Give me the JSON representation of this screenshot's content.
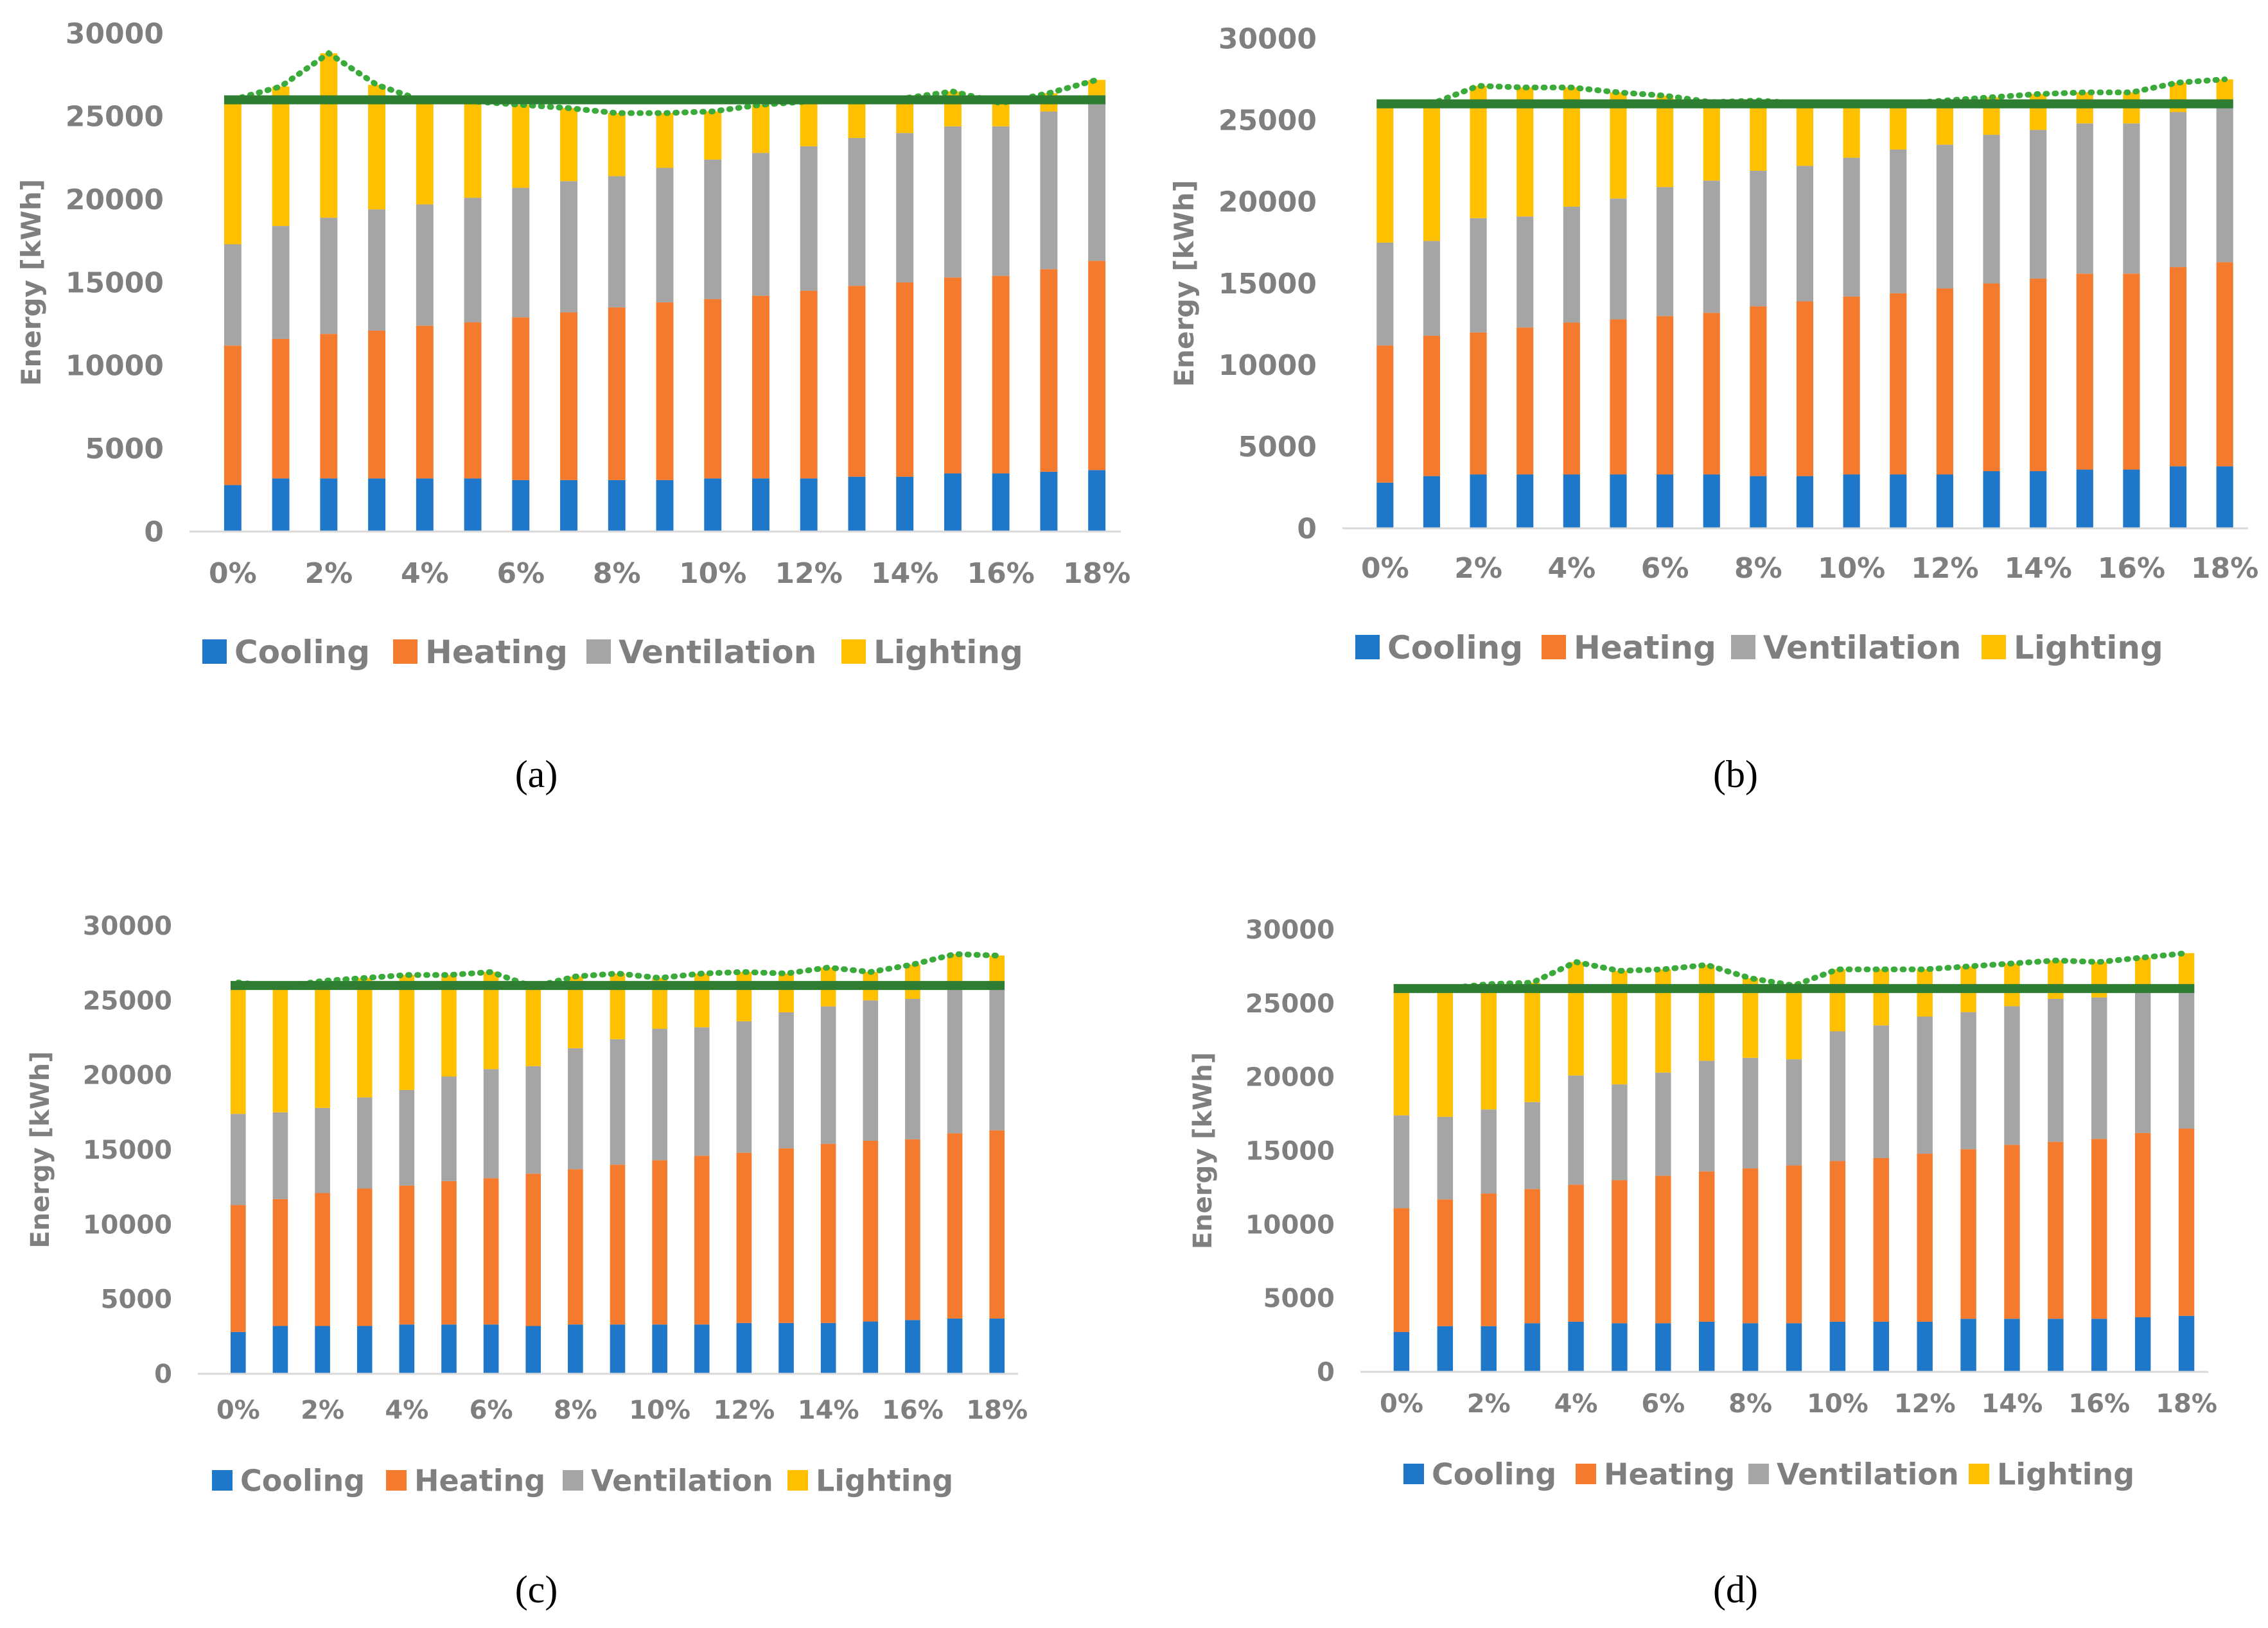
{
  "figure": {
    "colors": {
      "Cooling": "#1f77c9",
      "Heating": "#f47a2e",
      "Ventilation": "#a5a5a5",
      "Lighting": "#ffc000",
      "reference_line": "#2e7d32",
      "total_line": "#3aaa3a"
    }
  },
  "chart_data": [
    {
      "type": "bar",
      "stacked": true,
      "panel_label": "(a)",
      "ylabel": "Energy [kWh]",
      "ylim": [
        0,
        30000
      ],
      "yticks": [
        "0",
        "5000",
        "10000",
        "15000",
        "20000",
        "25000",
        "30000"
      ],
      "categories": [
        "0%",
        "1%",
        "2%",
        "3%",
        "4%",
        "5%",
        "6%",
        "7%",
        "8%",
        "9%",
        "10%",
        "11%",
        "12%",
        "13%",
        "14%",
        "15%",
        "16%",
        "17%",
        "18%"
      ],
      "xtick_labels": [
        "0%",
        "2%",
        "4%",
        "6%",
        "8%",
        "10%",
        "12%",
        "14%",
        "16%",
        "18%"
      ],
      "series": [
        {
          "name": "Cooling",
          "values": [
            2800,
            3200,
            3200,
            3200,
            3200,
            3200,
            3100,
            3100,
            3100,
            3100,
            3200,
            3200,
            3200,
            3300,
            3300,
            3500,
            3500,
            3600,
            3700
          ]
        },
        {
          "name": "Heating",
          "values": [
            8400,
            8400,
            8700,
            8900,
            9200,
            9400,
            9800,
            10100,
            10400,
            10700,
            10800,
            11000,
            11300,
            11500,
            11700,
            11800,
            11900,
            12200,
            12600
          ]
        },
        {
          "name": "Ventilation",
          "values": [
            6100,
            6800,
            7000,
            7300,
            7300,
            7500,
            7800,
            7900,
            7900,
            8100,
            8400,
            8600,
            8700,
            8900,
            9000,
            9100,
            9000,
            9500,
            9700
          ]
        },
        {
          "name": "Lighting",
          "values": [
            8700,
            8400,
            9900,
            7500,
            6200,
            5800,
            5000,
            4400,
            3800,
            3300,
            2900,
            2900,
            2700,
            2200,
            2100,
            2100,
            1400,
            1100,
            1200
          ]
        }
      ],
      "reference_value": 26000,
      "legend": [
        "Cooling",
        "Heating",
        "Ventilation",
        "Lighting"
      ]
    },
    {
      "type": "bar",
      "stacked": true,
      "panel_label": "(b)",
      "ylabel": "Energy [kWh]",
      "ylim": [
        0,
        30000
      ],
      "yticks": [
        "0",
        "5000",
        "10000",
        "15000",
        "20000",
        "25000",
        "30000"
      ],
      "categories": [
        "0%",
        "1%",
        "2%",
        "3%",
        "4%",
        "5%",
        "6%",
        "7%",
        "8%",
        "9%",
        "10%",
        "11%",
        "12%",
        "13%",
        "14%",
        "15%",
        "16%",
        "17%",
        "18%"
      ],
      "xtick_labels": [
        "0%",
        "2%",
        "4%",
        "6%",
        "8%",
        "10%",
        "12%",
        "14%",
        "16%",
        "18%"
      ],
      "series": [
        {
          "name": "Cooling",
          "values": [
            2800,
            3200,
            3300,
            3300,
            3300,
            3300,
            3300,
            3300,
            3200,
            3200,
            3300,
            3300,
            3300,
            3500,
            3500,
            3600,
            3600,
            3800,
            3800
          ]
        },
        {
          "name": "Heating",
          "values": [
            8400,
            8600,
            8700,
            9000,
            9300,
            9500,
            9700,
            9900,
            10400,
            10700,
            10900,
            11100,
            11400,
            11500,
            11800,
            12000,
            12000,
            12200,
            12500
          ]
        },
        {
          "name": "Ventilation",
          "values": [
            6300,
            5800,
            7000,
            6800,
            7100,
            7400,
            7900,
            8100,
            8300,
            8300,
            8500,
            8800,
            8800,
            9100,
            9100,
            9200,
            9200,
            9500,
            9700
          ]
        },
        {
          "name": "Lighting",
          "values": [
            8600,
            8400,
            8100,
            7900,
            7300,
            6500,
            5600,
            4800,
            4300,
            3800,
            3200,
            2800,
            2700,
            2300,
            2200,
            1900,
            1900,
            1800,
            1500
          ]
        }
      ],
      "reference_value": 26000,
      "legend": [
        "Cooling",
        "Heating",
        "Ventilation",
        "Lighting"
      ]
    },
    {
      "type": "bar",
      "stacked": true,
      "panel_label": "(c)",
      "ylabel": "Energy [kWh]",
      "ylim": [
        0,
        30000
      ],
      "yticks": [
        "0",
        "5000",
        "10000",
        "15000",
        "20000",
        "25000",
        "30000"
      ],
      "categories": [
        "0%",
        "1%",
        "2%",
        "3%",
        "4%",
        "5%",
        "6%",
        "7%",
        "8%",
        "9%",
        "10%",
        "11%",
        "12%",
        "13%",
        "14%",
        "15%",
        "16%",
        "17%",
        "18%"
      ],
      "xtick_labels": [
        "0%",
        "2%",
        "4%",
        "6%",
        "8%",
        "10%",
        "12%",
        "14%",
        "16%",
        "18%"
      ],
      "series": [
        {
          "name": "Cooling",
          "values": [
            2800,
            3200,
            3200,
            3200,
            3300,
            3300,
            3300,
            3200,
            3300,
            3300,
            3300,
            3300,
            3400,
            3400,
            3400,
            3500,
            3600,
            3700,
            3700
          ]
        },
        {
          "name": "Heating",
          "values": [
            8500,
            8500,
            8900,
            9200,
            9300,
            9600,
            9800,
            10200,
            10400,
            10700,
            11000,
            11300,
            11400,
            11700,
            12000,
            12100,
            12100,
            12400,
            12600
          ]
        },
        {
          "name": "Ventilation",
          "values": [
            6100,
            5800,
            5700,
            6100,
            6400,
            7000,
            7300,
            7200,
            8100,
            8400,
            8800,
            8600,
            8800,
            9100,
            9200,
            9400,
            9400,
            9700,
            9900
          ]
        },
        {
          "name": "Lighting",
          "values": [
            8800,
            8400,
            8500,
            8000,
            7700,
            6800,
            6500,
            5300,
            4800,
            4400,
            3400,
            3600,
            3300,
            2600,
            2600,
            1900,
            2300,
            2300,
            1800
          ]
        }
      ],
      "reference_value": 26000,
      "legend": [
        "Cooling",
        "Heating",
        "Ventilation",
        "Lighting"
      ]
    },
    {
      "type": "bar",
      "stacked": true,
      "panel_label": "(d)",
      "ylabel": "Energy [kWh]",
      "ylim": [
        0,
        30000
      ],
      "yticks": [
        "0",
        "5000",
        "10000",
        "15000",
        "20000",
        "25000",
        "30000"
      ],
      "categories": [
        "0%",
        "1%",
        "2%",
        "3%",
        "4%",
        "5%",
        "6%",
        "7%",
        "8%",
        "9%",
        "10%",
        "11%",
        "12%",
        "13%",
        "14%",
        "15%",
        "16%",
        "17%",
        "18%"
      ],
      "xtick_labels": [
        "0%",
        "2%",
        "4%",
        "6%",
        "8%",
        "10%",
        "12%",
        "14%",
        "16%",
        "18%"
      ],
      "series": [
        {
          "name": "Cooling",
          "values": [
            2700,
            3100,
            3100,
            3300,
            3400,
            3300,
            3300,
            3400,
            3300,
            3300,
            3400,
            3400,
            3400,
            3600,
            3600,
            3600,
            3600,
            3700,
            3800
          ]
        },
        {
          "name": "Heating",
          "values": [
            8400,
            8600,
            9000,
            9100,
            9300,
            9700,
            10000,
            10200,
            10500,
            10700,
            10900,
            11100,
            11400,
            11500,
            11800,
            12000,
            12200,
            12500,
            12700
          ]
        },
        {
          "name": "Ventilation",
          "values": [
            6300,
            5600,
            5700,
            5900,
            7400,
            6500,
            7000,
            7500,
            7500,
            7200,
            8800,
            9000,
            9300,
            9300,
            9400,
            9700,
            9600,
            9700,
            9800
          ]
        },
        {
          "name": "Lighting",
          "values": [
            8600,
            8700,
            8500,
            8100,
            7700,
            7700,
            7000,
            6500,
            5400,
            5000,
            4200,
            3800,
            3200,
            3100,
            2900,
            2600,
            2400,
            2200,
            2100
          ]
        }
      ],
      "reference_value": 26000,
      "legend": [
        "Cooling",
        "Heating",
        "Ventilation",
        "Lighting"
      ]
    }
  ]
}
